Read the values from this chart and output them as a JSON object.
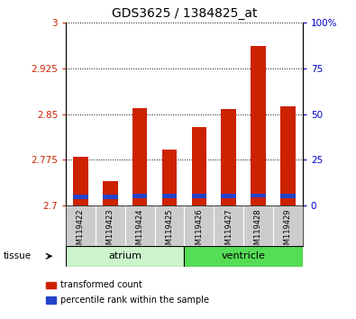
{
  "title": "GDS3625 / 1384825_at",
  "samples": [
    "GSM119422",
    "GSM119423",
    "GSM119424",
    "GSM119425",
    "GSM119426",
    "GSM119427",
    "GSM119428",
    "GSM119429"
  ],
  "red_tops": [
    2.78,
    2.74,
    2.86,
    2.792,
    2.828,
    2.858,
    2.962,
    2.862
  ],
  "blue_bottoms": [
    2.7105,
    2.7105,
    2.713,
    2.712,
    2.712,
    2.712,
    2.714,
    2.712
  ],
  "blue_tops": [
    2.718,
    2.718,
    2.72,
    2.719,
    2.719,
    2.719,
    2.72,
    2.719
  ],
  "base": 2.7,
  "ylim_left": [
    2.7,
    3.0
  ],
  "ylim_right": [
    0,
    100
  ],
  "yticks_left": [
    2.7,
    2.775,
    2.85,
    2.925,
    3.0
  ],
  "ytick_labels_left": [
    "2.7",
    "2.775",
    "2.85",
    "2.925",
    "3"
  ],
  "yticks_right": [
    0,
    25,
    50,
    75,
    100
  ],
  "ytick_labels_right": [
    "0",
    "25",
    "50",
    "75",
    "100%"
  ],
  "tissue_groups": [
    {
      "label": "atrium",
      "start": 0,
      "end": 4,
      "color": "#ccf5cc"
    },
    {
      "label": "ventricle",
      "start": 4,
      "end": 8,
      "color": "#55dd55"
    }
  ],
  "tissue_label": "tissue",
  "legend_red_label": "transformed count",
  "legend_blue_label": "percentile rank within the sample",
  "bar_color": "#cc2200",
  "blue_color": "#2244cc",
  "sample_bg": "#cccccc",
  "plot_bg": "#ffffff",
  "title_fontsize": 10,
  "tick_color_left": "#cc2200",
  "tick_color_right": "#0000cc",
  "bar_width": 0.5
}
